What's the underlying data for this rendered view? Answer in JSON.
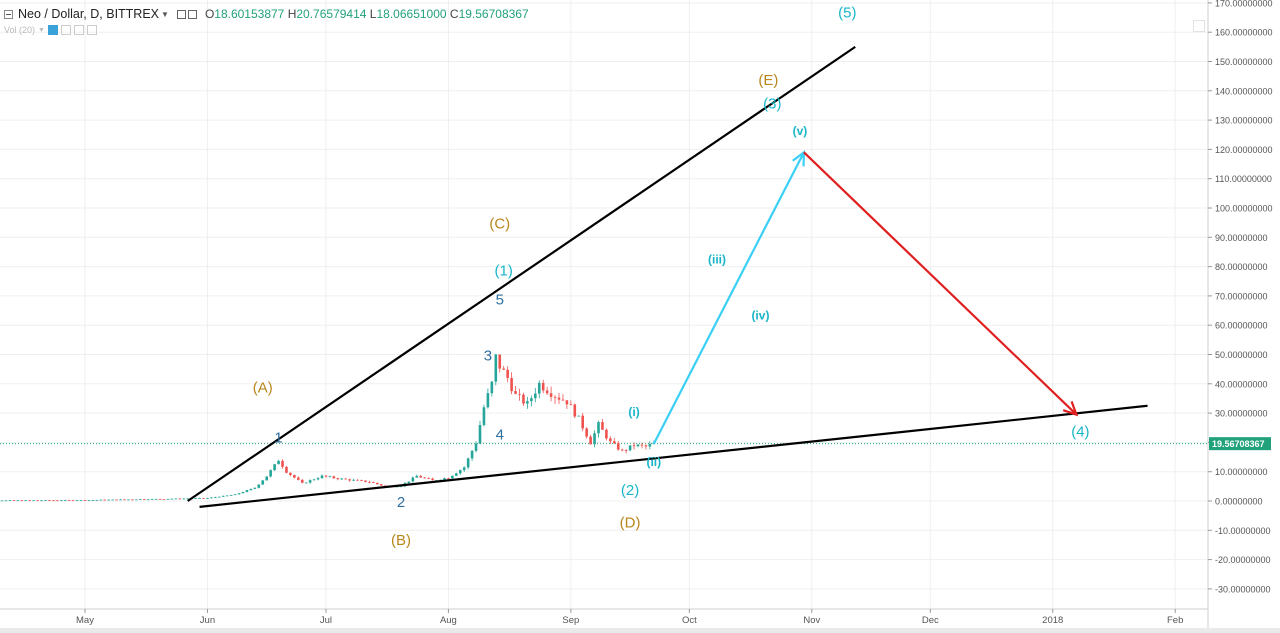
{
  "header": {
    "symbol": "Neo / Dollar, D, BITTREX",
    "open_label": "O",
    "open": "18.60153877",
    "high_label": "H",
    "high": "20.76579414",
    "low_label": "L",
    "low": "18.06651000",
    "close_label": "C",
    "close": "19.56708367",
    "vol_label": "Vol (20)"
  },
  "colors": {
    "up_candle": "#26a69a",
    "down_candle": "#ef5350",
    "price_line": "#21a27b",
    "wave_orange": "#b8861b",
    "wave_cyan": "#18b5c9",
    "wave_blue": "#2f6fa0",
    "arrow_up": "#3ad0f5",
    "arrow_down": "#e02020",
    "trendline": "#000000",
    "grid": "#efefef"
  },
  "chart_data": {
    "type": "candlestick",
    "title": "Neo / Dollar, D, BITTREX",
    "x_ticks": [
      "May",
      "Jun",
      "Jul",
      "Aug",
      "Sep",
      "Oct",
      "Nov",
      "Dec",
      "2018",
      "Feb"
    ],
    "y_ticks": [
      "170.00000000",
      "160.00000000",
      "150.00000000",
      "140.00000000",
      "130.00000000",
      "120.00000000",
      "110.00000000",
      "100.00000000",
      "90.00000000",
      "80.00000000",
      "70.00000000",
      "60.00000000",
      "50.00000000",
      "40.00000000",
      "30.00000000",
      "20.00000000",
      "10.00000000",
      "0.00000000",
      "-10.00000000",
      "-20.00000000",
      "-30.00000000"
    ],
    "ylim": [
      -39,
      170
    ],
    "last_price": 19.56708367,
    "last_price_label": "19.56708367",
    "price_series_approx": [
      {
        "date": "2017-04-15",
        "close": 0.2
      },
      {
        "date": "2017-05-01",
        "close": 0.3
      },
      {
        "date": "2017-05-15",
        "close": 0.6
      },
      {
        "date": "2017-05-25",
        "close": 0.8
      },
      {
        "date": "2017-06-01",
        "close": 1.0
      },
      {
        "date": "2017-06-08",
        "close": 2.2
      },
      {
        "date": "2017-06-13",
        "close": 4.5
      },
      {
        "date": "2017-06-16",
        "close": 8.5
      },
      {
        "date": "2017-06-19",
        "close": 14.0
      },
      {
        "date": "2017-06-21",
        "close": 10.0
      },
      {
        "date": "2017-06-25",
        "close": 6.0
      },
      {
        "date": "2017-06-30",
        "close": 8.5
      },
      {
        "date": "2017-07-05",
        "close": 7.5
      },
      {
        "date": "2017-07-12",
        "close": 6.5
      },
      {
        "date": "2017-07-16",
        "close": 5.0
      },
      {
        "date": "2017-07-20",
        "close": 5.2
      },
      {
        "date": "2017-07-24",
        "close": 8.5
      },
      {
        "date": "2017-07-28",
        "close": 7.0
      },
      {
        "date": "2017-08-01",
        "close": 8.0
      },
      {
        "date": "2017-08-05",
        "close": 11.5
      },
      {
        "date": "2017-08-08",
        "close": 20.0
      },
      {
        "date": "2017-08-10",
        "close": 32.0
      },
      {
        "date": "2017-08-12",
        "close": 40.0
      },
      {
        "date": "2017-08-13",
        "close": 49.0
      },
      {
        "date": "2017-08-14",
        "close": 46.0
      },
      {
        "date": "2017-08-16",
        "close": 42.0
      },
      {
        "date": "2017-08-18",
        "close": 36.0
      },
      {
        "date": "2017-08-21",
        "close": 33.0
      },
      {
        "date": "2017-08-24",
        "close": 40.0
      },
      {
        "date": "2017-08-28",
        "close": 36.0
      },
      {
        "date": "2017-08-31",
        "close": 34.0
      },
      {
        "date": "2017-09-03",
        "close": 28.0
      },
      {
        "date": "2017-09-06",
        "close": 20.0
      },
      {
        "date": "2017-09-08",
        "close": 26.0
      },
      {
        "date": "2017-09-11",
        "close": 20.0
      },
      {
        "date": "2017-09-14",
        "close": 17.0
      },
      {
        "date": "2017-09-17",
        "close": 19.0
      },
      {
        "date": "2017-09-20",
        "close": 18.5
      },
      {
        "date": "2017-09-22",
        "close": 19.57
      }
    ],
    "trendlines": [
      {
        "name": "upper",
        "points": [
          {
            "date": "2017-05-27",
            "price": 0.0
          },
          {
            "date": "2017-11-12",
            "price": 155.0
          }
        ]
      },
      {
        "name": "lower",
        "points": [
          {
            "date": "2017-05-30",
            "price": -2.0
          },
          {
            "date": "2018-01-25",
            "price": 32.5
          }
        ]
      }
    ],
    "arrows": [
      {
        "name": "projection-up",
        "from": {
          "date": "2017-09-22",
          "price": 19.5
        },
        "to": {
          "date": "2017-10-30",
          "price": 119.0
        }
      },
      {
        "name": "projection-down",
        "from": {
          "date": "2017-10-30",
          "price": 119.0
        },
        "to": {
          "date": "2018-01-07",
          "price": 29.5
        }
      }
    ],
    "wave_labels": [
      {
        "text": "1",
        "date": "2017-06-19",
        "price": 20.0,
        "color": "blue"
      },
      {
        "text": "2",
        "date": "2017-07-20",
        "price": -2.0,
        "color": "blue"
      },
      {
        "text": "3",
        "date": "2017-08-11",
        "price": 48.0,
        "color": "blue"
      },
      {
        "text": "4",
        "date": "2017-08-14",
        "price": 21.0,
        "color": "blue"
      },
      {
        "text": "5",
        "date": "2017-08-14",
        "price": 67.0,
        "color": "blue"
      },
      {
        "text": "(A)",
        "date": "2017-06-15",
        "price": 37.0,
        "color": "orange"
      },
      {
        "text": "(B)",
        "date": "2017-07-20",
        "price": -15.0,
        "color": "orange"
      },
      {
        "text": "(C)",
        "date": "2017-08-14",
        "price": 93.0,
        "color": "orange"
      },
      {
        "text": "(D)",
        "date": "2017-09-16",
        "price": -9.0,
        "color": "orange"
      },
      {
        "text": "(E)",
        "date": "2017-10-21",
        "price": 142.0,
        "color": "orange"
      },
      {
        "text": "(1)",
        "date": "2017-08-15",
        "price": 77.0,
        "color": "cyan"
      },
      {
        "text": "(2)",
        "date": "2017-09-16",
        "price": 2.0,
        "color": "cyan"
      },
      {
        "text": "(3)",
        "date": "2017-10-22",
        "price": 134.0,
        "color": "cyan"
      },
      {
        "text": "(4)",
        "date": "2018-01-08",
        "price": 22.0,
        "color": "cyan"
      },
      {
        "text": "(5)",
        "date": "2017-11-10",
        "price": 165.0,
        "color": "cyan"
      },
      {
        "text": "(i)",
        "date": "2017-09-17",
        "price": 29.0,
        "color": "cyan"
      },
      {
        "text": "(ii)",
        "date": "2017-09-22",
        "price": 12.0,
        "color": "cyan"
      },
      {
        "text": "(iii)",
        "date": "2017-10-08",
        "price": 81.0,
        "color": "cyan"
      },
      {
        "text": "(iv)",
        "date": "2017-10-19",
        "price": 62.0,
        "color": "cyan"
      },
      {
        "text": "(v)",
        "date": "2017-10-29",
        "price": 125.0,
        "color": "cyan"
      }
    ]
  }
}
